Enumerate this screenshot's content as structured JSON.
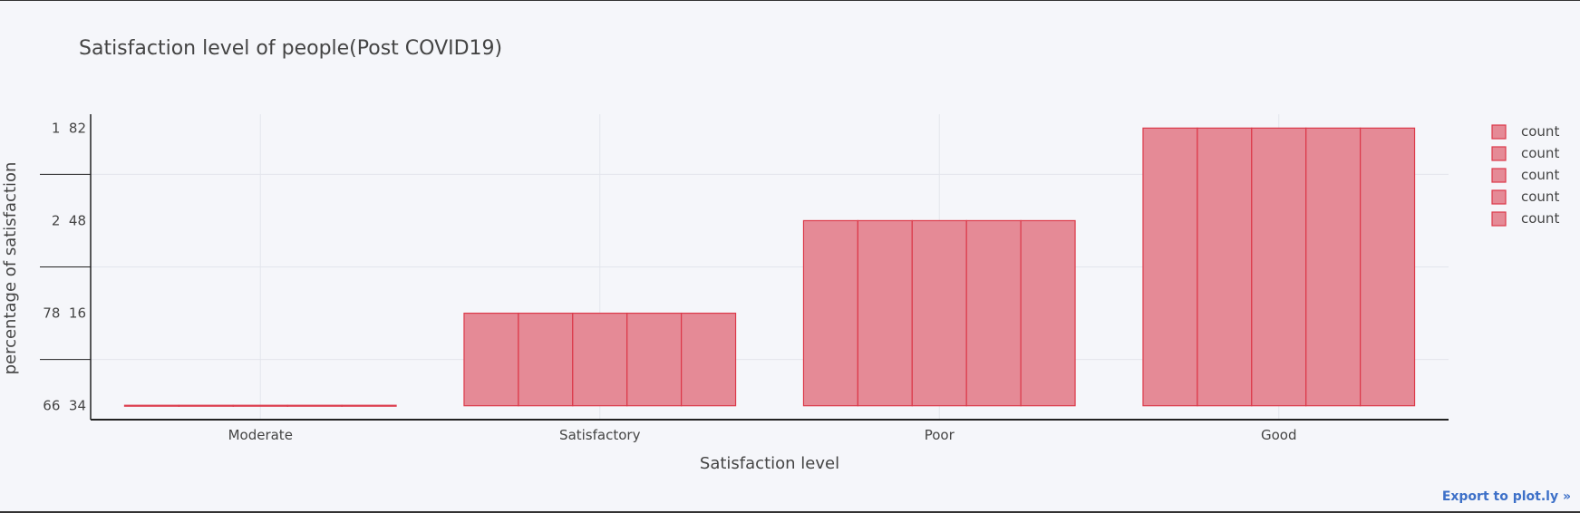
{
  "chart_data": {
    "type": "bar",
    "title": "Satisfaction level of people(Post COVID19)",
    "xlabel": "Satisfaction level",
    "ylabel": "percentage of satisfaction",
    "categories": [
      "Moderate",
      "Satisfactory",
      "Poor",
      "Good"
    ],
    "series": [
      {
        "name": "count",
        "values": [
          0,
          1,
          2,
          3
        ]
      },
      {
        "name": "count",
        "values": [
          0,
          1,
          2,
          3
        ]
      },
      {
        "name": "count",
        "values": [
          0,
          1,
          2,
          3
        ]
      },
      {
        "name": "count",
        "values": [
          0,
          1,
          2,
          3
        ]
      },
      {
        "name": "count",
        "values": [
          0,
          1,
          2,
          3
        ]
      }
    ],
    "y_tick_values": [
      0,
      1,
      2,
      3
    ],
    "y_tick_labels": [
      "66  34",
      "78  16",
      "2  48",
      "1  82"
    ],
    "ylim": [
      -0.15,
      3.15
    ],
    "grid": true,
    "legend_position": "top-right",
    "colors": {
      "bar_fill": "#e58a96",
      "bar_stroke": "#dc3949",
      "gridline": "#e3e5ec",
      "axis": "#222222",
      "text": "#444444",
      "link": "#3d70c8"
    }
  },
  "export_link": "Export to plot.ly »"
}
